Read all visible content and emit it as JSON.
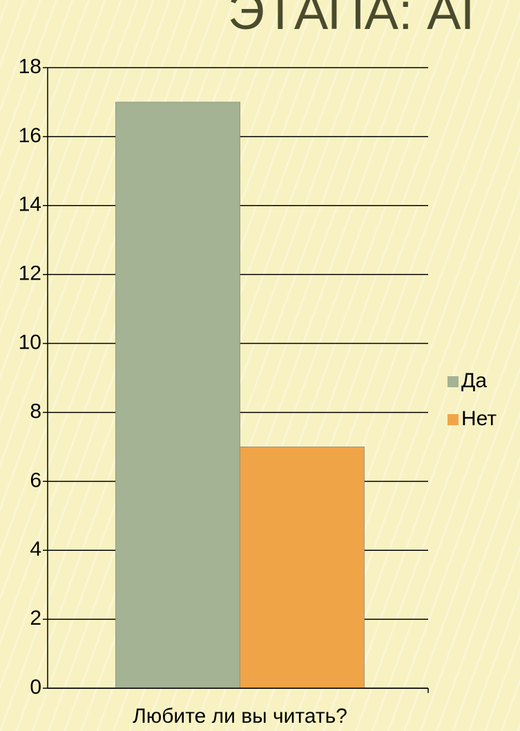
{
  "chart_data": {
    "type": "bar",
    "title": "ЭТАПА: АГ",
    "categories": [
      "Любите ли вы читать?"
    ],
    "series": [
      {
        "name": "Да",
        "color": "#a4b393",
        "values": [
          17
        ]
      },
      {
        "name": "Нет",
        "color": "#f0a448",
        "values": [
          7
        ]
      }
    ],
    "ylim": [
      0,
      18
    ],
    "yticks": [
      0,
      2,
      4,
      6,
      8,
      10,
      12,
      14,
      16,
      18
    ],
    "grid": true,
    "legend": "right"
  }
}
